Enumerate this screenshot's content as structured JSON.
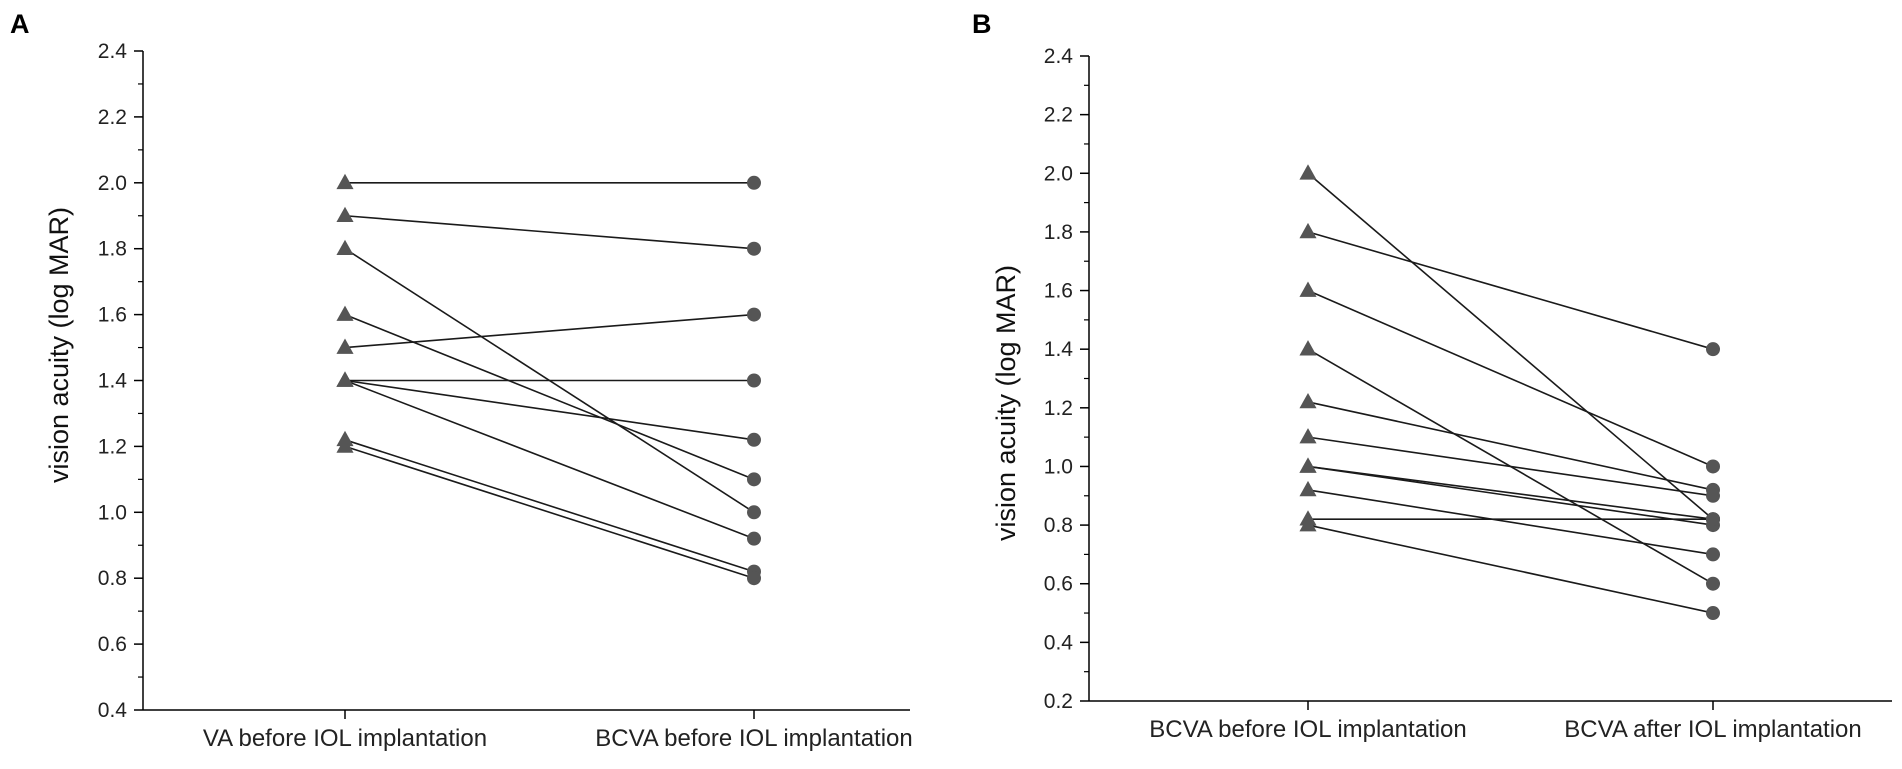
{
  "chart_data": [
    {
      "panel_label": "A",
      "type": "line",
      "categories": [
        "VA before IOL implantation",
        "BCVA before IOL implantation"
      ],
      "ylabel": "vision acuity (log MAR)",
      "ylim": [
        0.4,
        2.4
      ],
      "yticks": [
        "0.4",
        "0.6",
        "0.8",
        "1.0",
        "1.2",
        "1.4",
        "1.6",
        "1.8",
        "2.0",
        "2.2",
        "2.4"
      ],
      "marker_start": "triangle",
      "marker_end": "circle",
      "pairs": [
        [
          2.0,
          2.0
        ],
        [
          1.9,
          1.8
        ],
        [
          1.8,
          1.0
        ],
        [
          1.6,
          1.1
        ],
        [
          1.5,
          1.6
        ],
        [
          1.4,
          1.4
        ],
        [
          1.4,
          1.22
        ],
        [
          1.4,
          0.92
        ],
        [
          1.22,
          0.82
        ],
        [
          1.2,
          0.8
        ]
      ]
    },
    {
      "panel_label": "B",
      "type": "line",
      "categories": [
        "BCVA before IOL implantation",
        "BCVA after IOL implantation"
      ],
      "ylabel": "vision acuity (log MAR)",
      "ylim": [
        0.2,
        2.4
      ],
      "yticks": [
        "0.2",
        "0.4",
        "0.6",
        "0.8",
        "1.0",
        "1.2",
        "1.4",
        "1.6",
        "1.8",
        "2.0",
        "2.2",
        "2.4"
      ],
      "marker_start": "triangle",
      "marker_end": "circle",
      "pairs": [
        [
          2.0,
          0.82
        ],
        [
          1.8,
          1.4
        ],
        [
          1.6,
          1.0
        ],
        [
          1.4,
          0.6
        ],
        [
          1.22,
          0.92
        ],
        [
          1.1,
          0.9
        ],
        [
          1.0,
          0.82
        ],
        [
          1.0,
          0.8
        ],
        [
          0.92,
          0.7
        ],
        [
          0.82,
          0.82
        ],
        [
          0.8,
          0.5
        ]
      ]
    }
  ],
  "colors": {
    "line": "#1a1a1a",
    "marker": "#555555",
    "axis": "#000000"
  }
}
